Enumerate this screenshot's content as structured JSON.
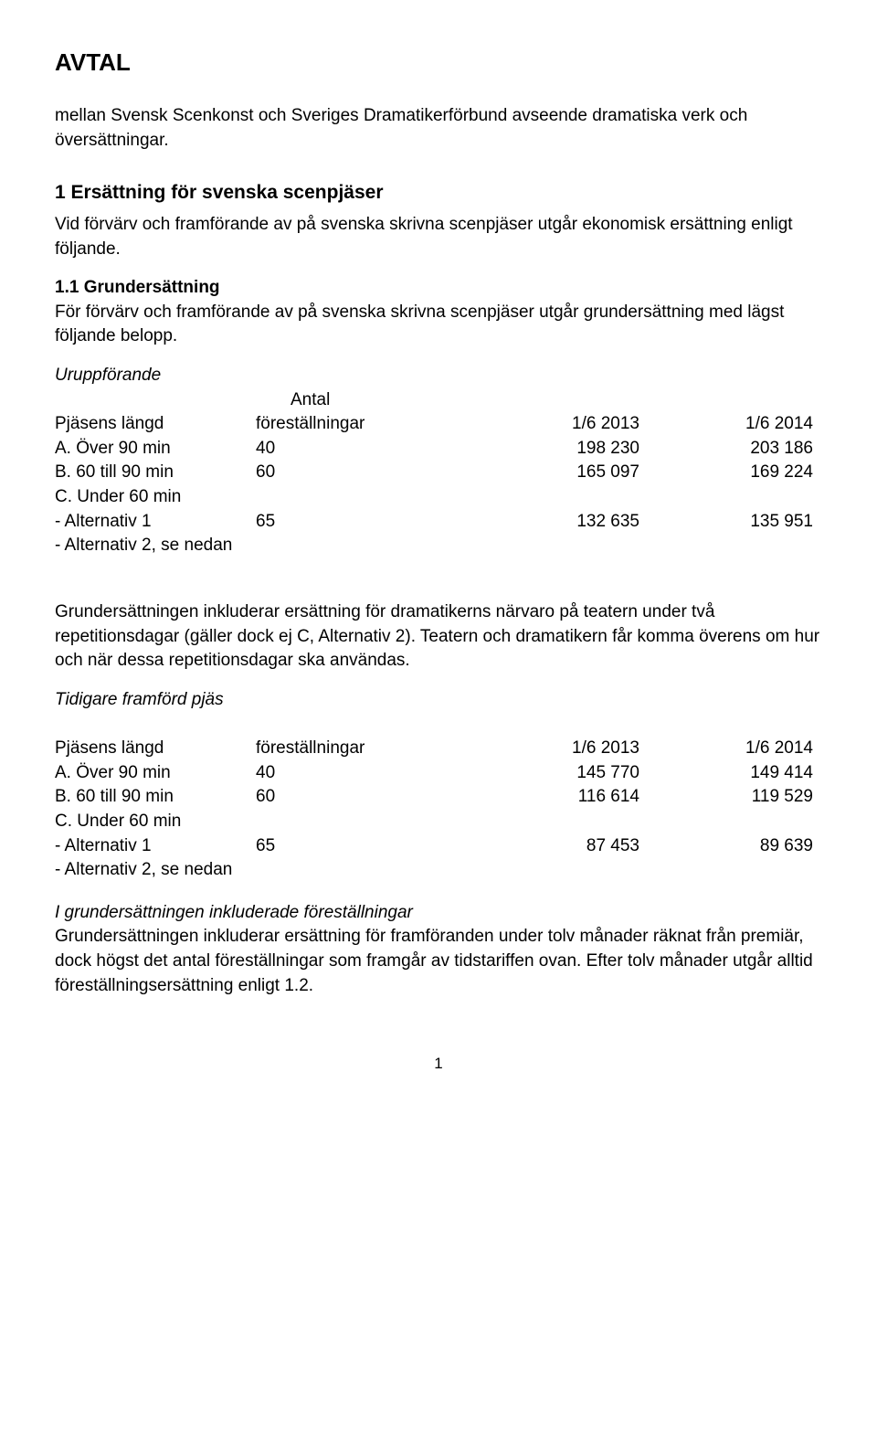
{
  "title": "AVTAL",
  "intro": "mellan Svensk Scenkonst och Sveriges Dramatikerförbund avseende dramatiska verk och översättningar.",
  "section1": {
    "heading": "1 Ersättning för svenska scenpjäser",
    "text": "Vid förvärv och framförande av på svenska skrivna scenpjäser utgår ekonomisk ersättning enligt följande."
  },
  "section11": {
    "heading": "1.1 Grundersättning",
    "text": "För förvärv och framförande av på svenska skrivna scenpjäser utgår grundersättning med lägst följande belopp."
  },
  "table1": {
    "caption": "Uruppförande",
    "antal": "Antal",
    "h1": "Pjäsens längd",
    "h2": "föreställningar",
    "h3": "1/6 2013",
    "h4": "1/6 2014",
    "rows": [
      {
        "c1": "A. Över 90 min",
        "c2": "40",
        "c3": "198 230",
        "c4": "203 186"
      },
      {
        "c1": "B. 60 till 90 min",
        "c2": "60",
        "c3": "165 097",
        "c4": "169 224"
      },
      {
        "c1": "C. Under 60 min",
        "c2": "",
        "c3": "",
        "c4": ""
      },
      {
        "c1": "-  Alternativ 1",
        "c2": "65",
        "c3": "132 635",
        "c4": "135 951"
      },
      {
        "c1": "-  Alternativ 2, se nedan",
        "c2": "",
        "c3": "",
        "c4": ""
      }
    ]
  },
  "para1": "Grundersättningen inkluderar ersättning för dramatikerns närvaro på teatern under två repetitionsdagar (gäller dock ej C, Alternativ 2). Teatern och dramatikern får komma överens om hur och när dessa repetitionsdagar ska användas.",
  "table2": {
    "caption": "Tidigare framförd pjäs",
    "h1": "Pjäsens längd",
    "h2": "föreställningar",
    "h3": "1/6 2013",
    "h4": "1/6 2014",
    "rows": [
      {
        "c1": "A. Över 90 min",
        "c2": "40",
        "c3": "145 770",
        "c4": "149 414"
      },
      {
        "c1": "B. 60 till 90 min",
        "c2": "60",
        "c3": "116 614",
        "c4": "119 529"
      },
      {
        "c1": "C. Under 60 min",
        "c2": "",
        "c3": "",
        "c4": ""
      },
      {
        "c1": "- Alternativ 1",
        "c2": "65",
        "c3": "87 453",
        "c4": "89 639"
      },
      {
        "c1": "- Alternativ 2, se nedan",
        "c2": "",
        "c3": "",
        "c4": ""
      }
    ]
  },
  "para2heading": "I grundersättningen inkluderade föreställningar",
  "para2": "Grundersättningen inkluderar ersättning för framföranden under tolv månader räknat från premiär, dock högst det antal föreställningar som framgår av tidstariffen ovan. Efter tolv månader utgår alltid föreställningsersättning enligt 1.2.",
  "pageNumber": "1"
}
